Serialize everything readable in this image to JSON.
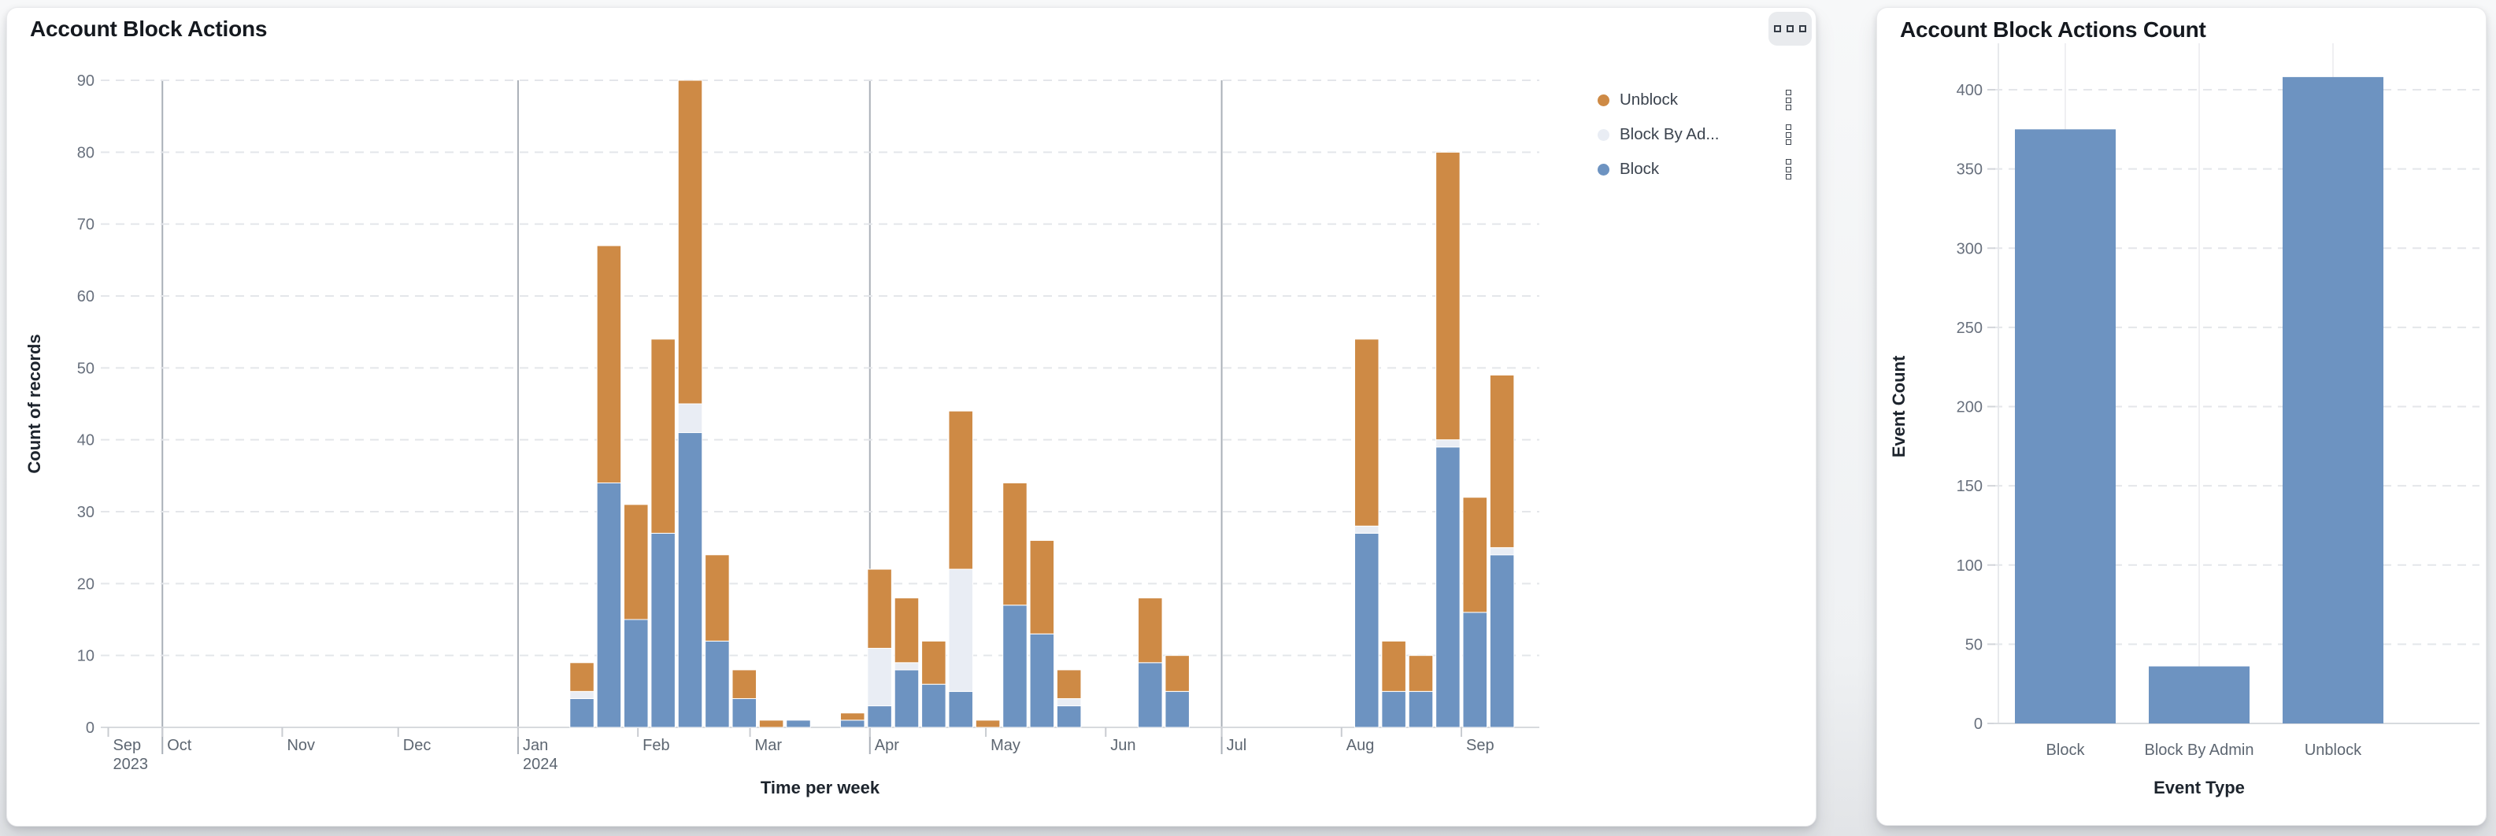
{
  "left_panel": {
    "title": "Account Block Actions",
    "more_button": "more-options",
    "legend": [
      {
        "label": "Unblock",
        "color": "#ce8a45"
      },
      {
        "label": "Block By Ad...",
        "color": "#e9edf4"
      },
      {
        "label": "Block",
        "color": "#6d93c1"
      }
    ]
  },
  "right_panel": {
    "title": "Account Block Actions Count"
  },
  "chart_data": [
    {
      "type": "bar",
      "stacked": true,
      "title": "Account Block Actions",
      "xlabel": "Time per week",
      "ylabel": "Count of records",
      "ylim": [
        0,
        90
      ],
      "y_ticks": [
        0,
        10,
        20,
        30,
        40,
        50,
        60,
        70,
        80,
        90
      ],
      "grid": true,
      "legend_position": "top-right",
      "x_domain": [
        "2023-09-17",
        "2024-09-22"
      ],
      "month_ticks": [
        {
          "label": "Sep",
          "sublabel": "2023",
          "date": "2023-09-17"
        },
        {
          "label": "Oct",
          "date": "2023-10-01"
        },
        {
          "label": "Nov",
          "date": "2023-11-01"
        },
        {
          "label": "Dec",
          "date": "2023-12-01"
        },
        {
          "label": "Jan",
          "sublabel": "2024",
          "date": "2024-01-01"
        },
        {
          "label": "Feb",
          "date": "2024-02-01"
        },
        {
          "label": "Mar",
          "date": "2024-03-01"
        },
        {
          "label": "Apr",
          "date": "2024-04-01"
        },
        {
          "label": "May",
          "date": "2024-05-01"
        },
        {
          "label": "Jun",
          "date": "2024-06-01"
        },
        {
          "label": "Jul",
          "date": "2024-07-01"
        },
        {
          "label": "Aug",
          "date": "2024-08-01"
        },
        {
          "label": "Sep",
          "date": "2024-09-01"
        }
      ],
      "quarter_lines": [
        "2023-10-01",
        "2024-01-01",
        "2024-04-01",
        "2024-07-01"
      ],
      "weeks": [
        "2024-01-14",
        "2024-01-21",
        "2024-01-28",
        "2024-02-04",
        "2024-02-11",
        "2024-02-18",
        "2024-02-25",
        "2024-03-03",
        "2024-03-10",
        "2024-03-24",
        "2024-03-31",
        "2024-04-07",
        "2024-04-14",
        "2024-04-21",
        "2024-04-28",
        "2024-05-05",
        "2024-05-12",
        "2024-05-19",
        "2024-06-09",
        "2024-06-16",
        "2024-08-04",
        "2024-08-11",
        "2024-08-18",
        "2024-08-25",
        "2024-09-01",
        "2024-09-08"
      ],
      "series": [
        {
          "name": "Block",
          "color": "#6d93c1",
          "values": [
            4,
            34,
            15,
            27,
            41,
            12,
            4,
            0,
            1,
            1,
            3,
            8,
            6,
            5,
            0,
            17,
            13,
            3,
            9,
            5,
            27,
            5,
            5,
            39,
            16,
            24
          ]
        },
        {
          "name": "Block By Admin",
          "color": "#e9edf4",
          "values": [
            1,
            0,
            0,
            0,
            4,
            0,
            0,
            0,
            0,
            0,
            8,
            1,
            0,
            17,
            0,
            0,
            0,
            1,
            0,
            0,
            1,
            0,
            0,
            1,
            0,
            1
          ]
        },
        {
          "name": "Unblock",
          "color": "#ce8a45",
          "values": [
            4,
            33,
            16,
            27,
            45,
            12,
            4,
            1,
            0,
            1,
            11,
            9,
            6,
            22,
            1,
            17,
            13,
            4,
            9,
            5,
            26,
            7,
            5,
            40,
            16,
            24
          ]
        }
      ]
    },
    {
      "type": "bar",
      "title": "Account Block Actions Count",
      "xlabel": "Event Type",
      "ylabel": "Event Count",
      "ylim": [
        0,
        400
      ],
      "y_ticks": [
        0,
        50,
        100,
        150,
        200,
        250,
        300,
        350,
        400
      ],
      "grid": true,
      "categories": [
        "Block",
        "Block By Admin",
        "Unblock"
      ],
      "values": [
        375,
        36,
        408
      ],
      "bar_color": "#6d93c1"
    }
  ]
}
